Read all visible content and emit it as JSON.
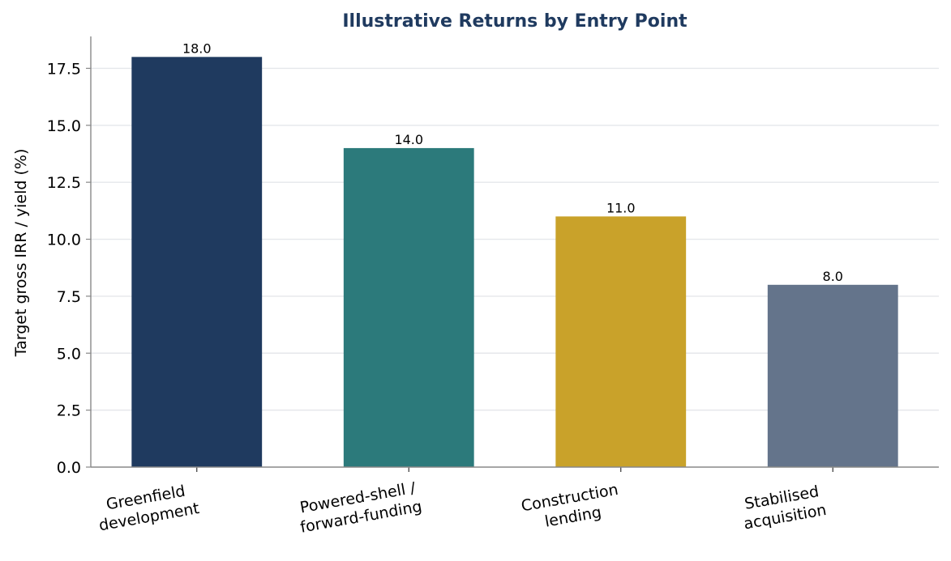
{
  "chart_data": {
    "type": "bar",
    "title": "Illustrative Returns by Entry Point",
    "xlabel": "",
    "ylabel": "Target gross IRR / yield (%)",
    "categories": [
      [
        "Greenfield",
        "development"
      ],
      [
        "Powered-shell /",
        "forward-funding"
      ],
      [
        "Construction",
        "lending"
      ],
      [
        "Stabilised",
        "acquisition"
      ]
    ],
    "values": [
      18.0,
      14.0,
      11.0,
      8.0
    ],
    "value_labels": [
      "18.0",
      "14.0",
      "11.0",
      "8.0"
    ],
    "bar_colors": [
      "#1f3a5f",
      "#2c7a7b",
      "#c9a22a",
      "#64748b"
    ],
    "ylim": [
      0,
      18.9
    ],
    "yticks": [
      0.0,
      2.5,
      5.0,
      7.5,
      10.0,
      12.5,
      15.0,
      17.5
    ],
    "ytick_labels": [
      "0.0",
      "2.5",
      "5.0",
      "7.5",
      "10.0",
      "12.5",
      "15.0",
      "17.5"
    ],
    "grid": "horizontal",
    "title_color": "#1f3a5f",
    "grid_color": "#e5e7eb",
    "axis_color": "#888888"
  }
}
